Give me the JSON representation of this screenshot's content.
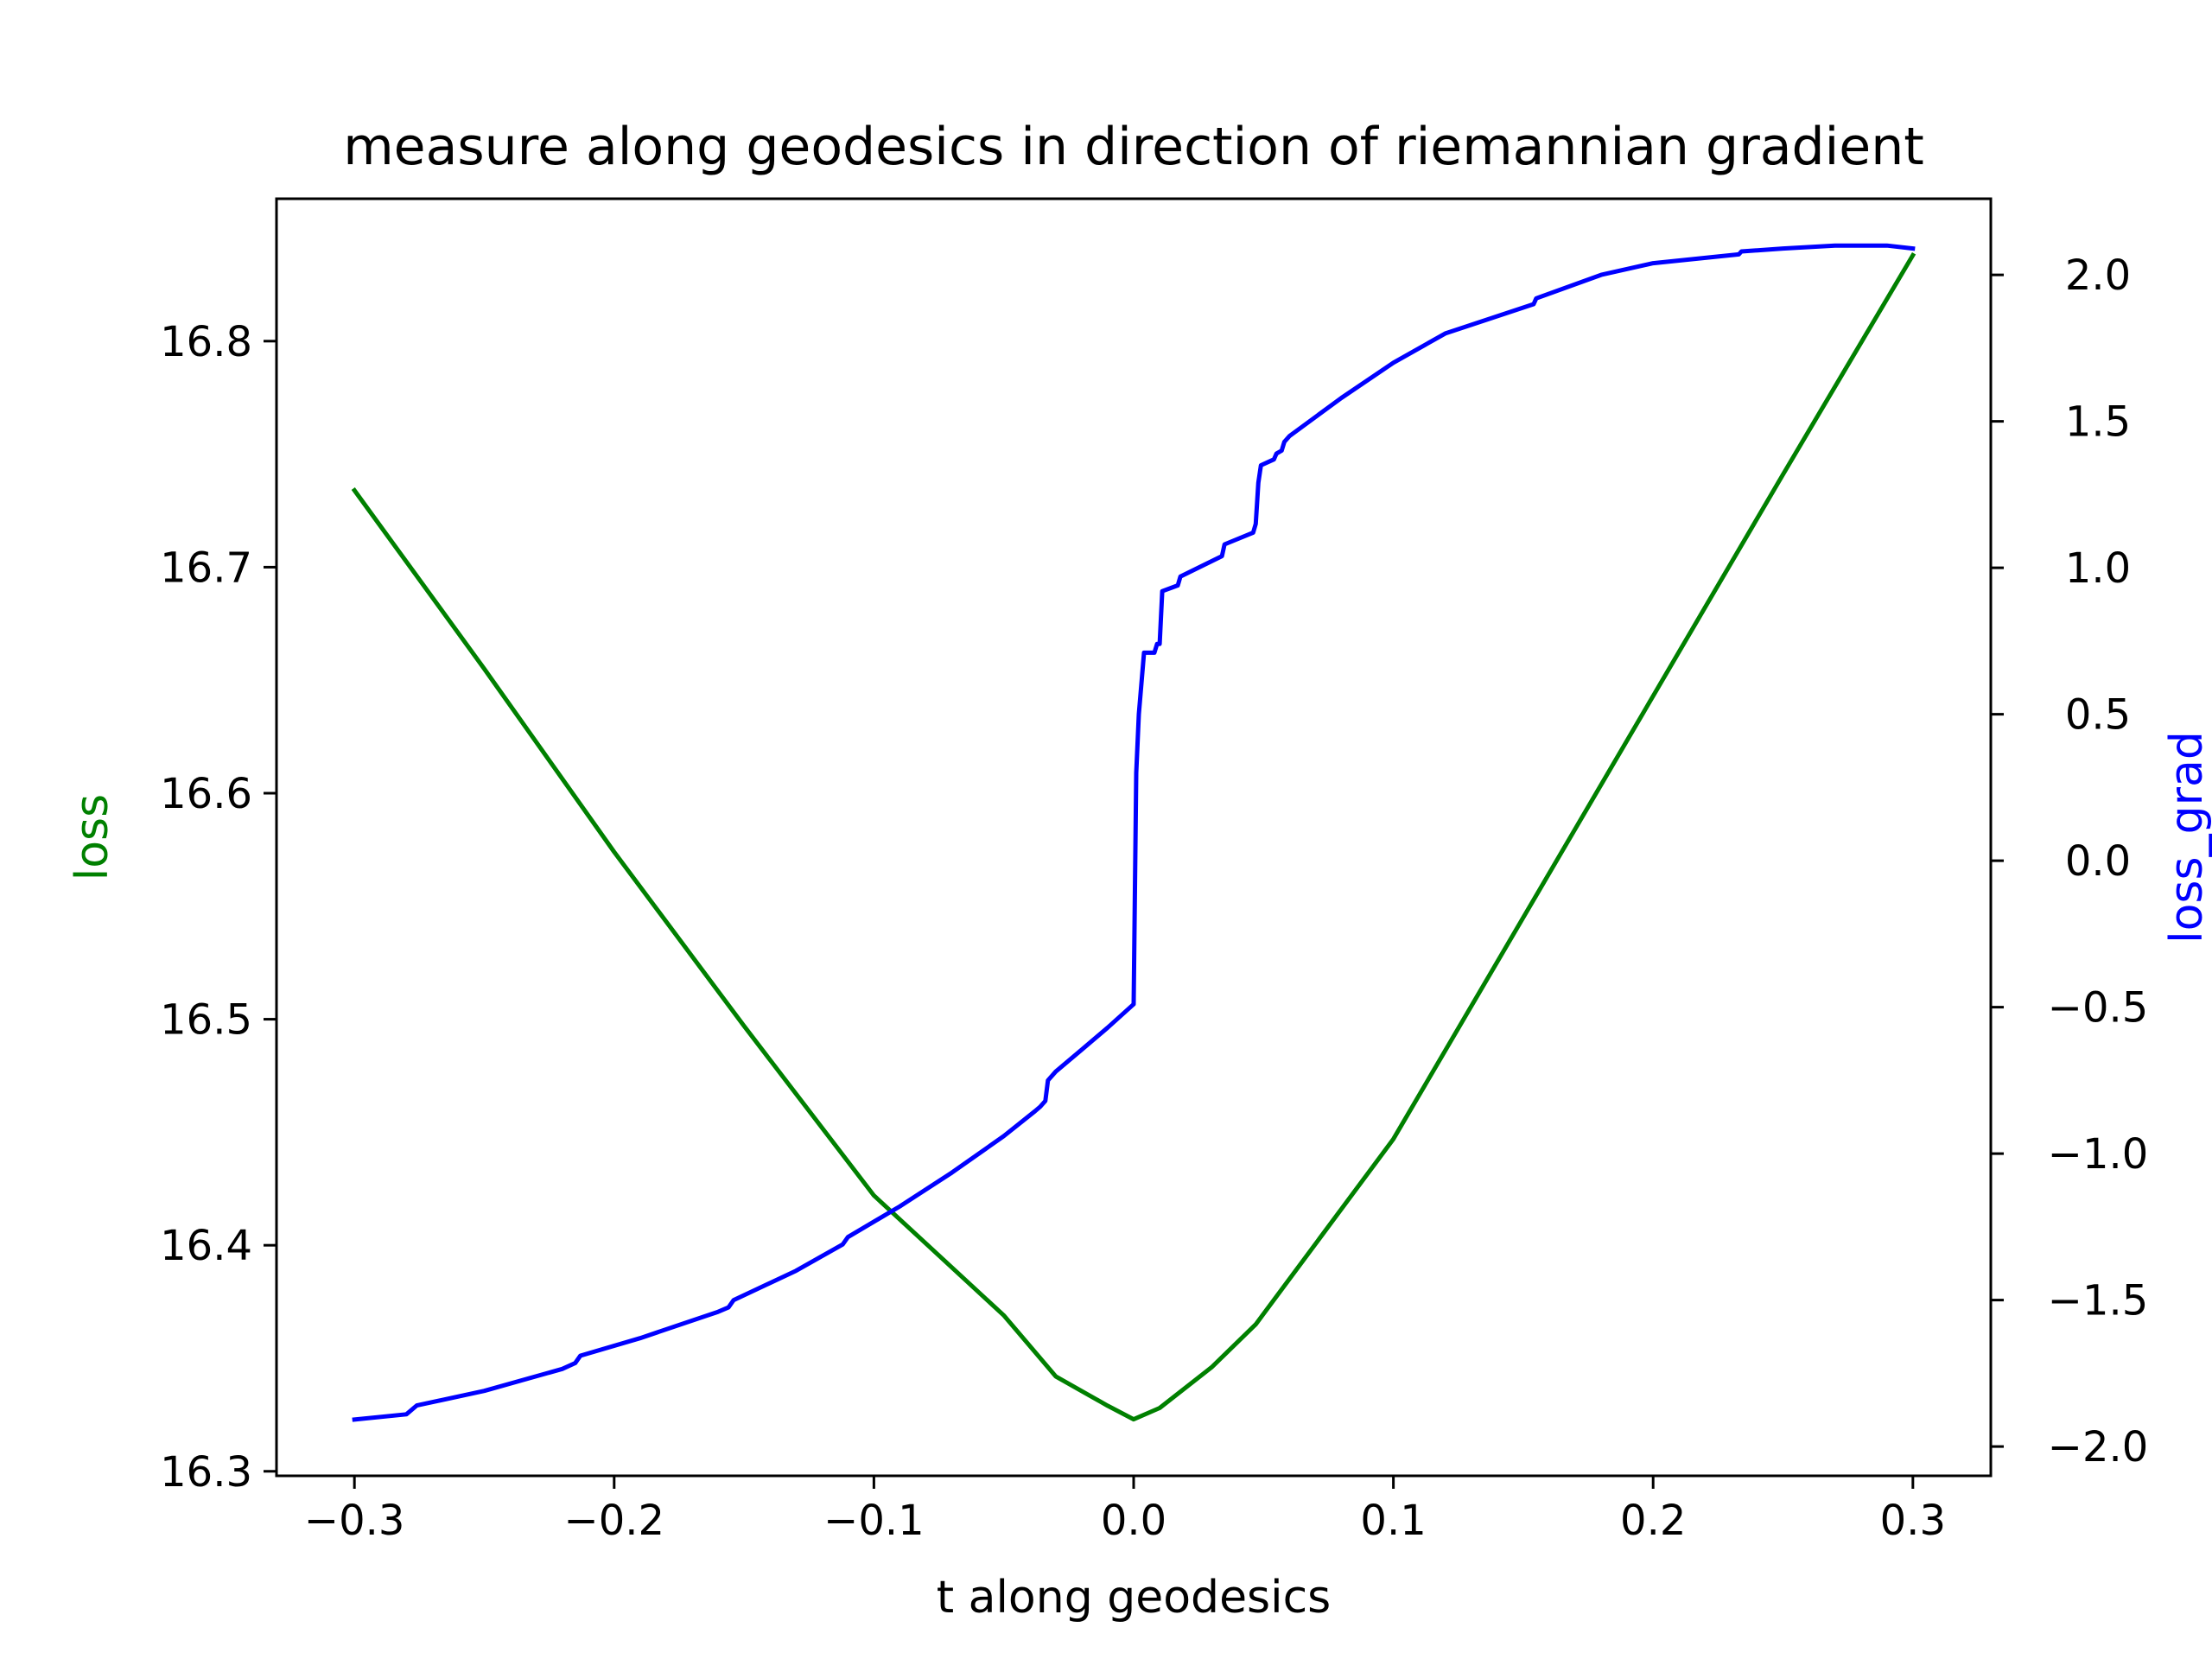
{
  "chart_data": {
    "type": "line",
    "title": "measure along geodesics in direction of riemannian gradient",
    "xlabel": "t along geodesics",
    "ylabel_left": "loss",
    "ylabel_right": "loss_grad",
    "xlim": [
      -0.33,
      0.33
    ],
    "ylim_left": [
      16.298,
      16.863
    ],
    "ylim_right": [
      -2.1,
      2.26
    ],
    "x_ticks": [
      -0.3,
      -0.2,
      -0.1,
      0.0,
      0.1,
      0.2,
      0.3
    ],
    "x_tick_labels": [
      "−0.3",
      "−0.2",
      "−0.1",
      "0.0",
      "0.1",
      "0.2",
      "0.3"
    ],
    "y_left_ticks": [
      16.3,
      16.4,
      16.5,
      16.6,
      16.7,
      16.8
    ],
    "y_left_tick_labels": [
      "16.3",
      "16.4",
      "16.5",
      "16.6",
      "16.7",
      "16.8"
    ],
    "y_right_ticks": [
      -2.0,
      -1.5,
      -1.0,
      -0.5,
      0.0,
      0.5,
      1.0,
      1.5,
      2.0
    ],
    "y_right_tick_labels": [
      "−2.0",
      "−1.5",
      "−1.0",
      "−0.5",
      "0.0",
      "0.5",
      "1.0",
      "1.5",
      "2.0"
    ],
    "grid": false,
    "colors": {
      "loss": "#008000",
      "loss_grad": "#0000ff",
      "axes": "#000000"
    },
    "series": [
      {
        "axis": "left",
        "color": "#008000",
        "x": [
          -0.3,
          -0.25,
          -0.2,
          -0.15,
          -0.1,
          -0.05,
          -0.03,
          -0.01,
          0.0,
          0.01,
          0.03,
          0.047,
          0.1,
          0.15,
          0.2,
          0.25,
          0.3
        ],
        "y": [
          16.734,
          16.655,
          16.574,
          16.497,
          16.422,
          16.369,
          16.342,
          16.329,
          16.323,
          16.328,
          16.346,
          16.365,
          16.447,
          16.545,
          16.643,
          16.741,
          16.838
        ]
      },
      {
        "axis": "right",
        "color": "#0000ff",
        "x": [
          -0.3,
          -0.28,
          -0.276,
          -0.25,
          -0.22,
          -0.215,
          -0.213,
          -0.19,
          -0.16,
          -0.156,
          -0.154,
          -0.13,
          -0.112,
          -0.11,
          -0.09,
          -0.07,
          -0.05,
          -0.038,
          -0.036,
          -0.034,
          -0.033,
          -0.03,
          -0.02,
          -0.01,
          0.0,
          0.001,
          0.002,
          0.004,
          0.005,
          0.008,
          0.009,
          0.01,
          0.011,
          0.017,
          0.018,
          0.034,
          0.035,
          0.046,
          0.047,
          0.048,
          0.049,
          0.054,
          0.055,
          0.057,
          0.058,
          0.06,
          0.08,
          0.1,
          0.12,
          0.154,
          0.155,
          0.18,
          0.2,
          0.233,
          0.234,
          0.25,
          0.27,
          0.29,
          0.3
        ],
        "y": [
          -1.908,
          -1.89,
          -1.86,
          -1.81,
          -1.735,
          -1.715,
          -1.69,
          -1.63,
          -1.54,
          -1.525,
          -1.5,
          -1.4,
          -1.31,
          -1.285,
          -1.18,
          -1.065,
          -0.94,
          -0.855,
          -0.84,
          -0.82,
          -0.75,
          -0.72,
          -0.645,
          -0.57,
          -0.49,
          0.3,
          0.5,
          0.71,
          0.71,
          0.71,
          0.74,
          0.74,
          0.92,
          0.94,
          0.97,
          1.04,
          1.08,
          1.12,
          1.15,
          1.29,
          1.35,
          1.37,
          1.39,
          1.4,
          1.43,
          1.45,
          1.58,
          1.7,
          1.8,
          1.9,
          1.92,
          2.0,
          2.04,
          2.07,
          2.08,
          2.09,
          2.1,
          2.1,
          2.09
        ]
      }
    ]
  }
}
